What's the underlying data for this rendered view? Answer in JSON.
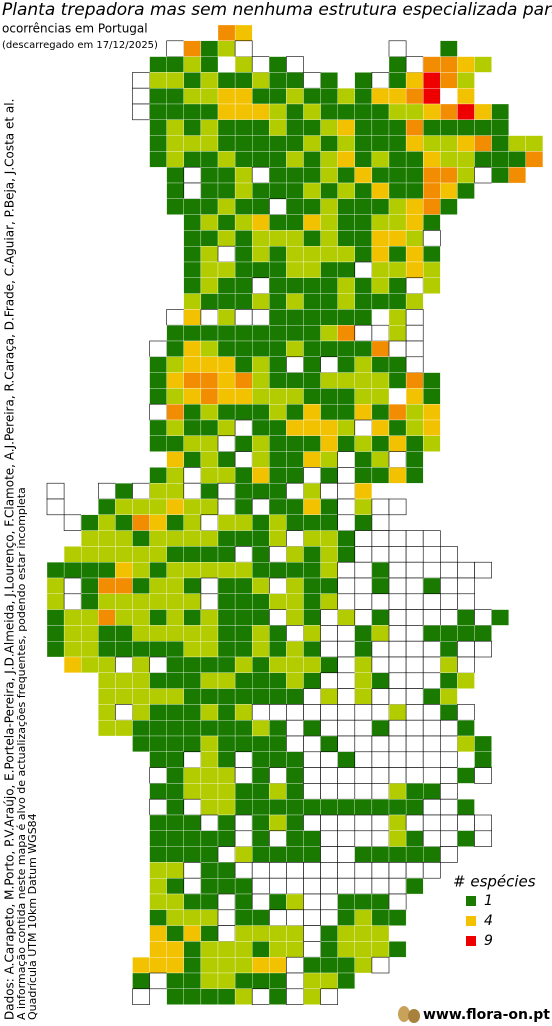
{
  "header": {
    "title": "Planta trepadora mas sem nenhuma estrutura especializada para trepa",
    "subtitle": "ocorrências em Portugal",
    "date": "(descarregado em 17/12/2025)"
  },
  "credits": [
    "Dados: A.Carapeto, M.Porto, P.V.Araújo, E.Portela-Pereira, J.D.Almeida, J.Lourenço, F.Clamote, A.J.Pereira, R.Caraça, D.Frade, C.Aguiar, P.Beja, J.Costa et al.",
    "A informação contida neste mapa é alvo de actualizações frequentes, podendo estar incompleta",
    "Quadrícula UTM 10km Datum WGS84"
  ],
  "legend": {
    "title": "# espécies",
    "items": [
      {
        "value": 1,
        "color": "#1a7a00"
      },
      {
        "value": 4,
        "color": "#f2c200"
      },
      {
        "value": 9,
        "color": "#ee0000"
      }
    ]
  },
  "map": {
    "intermediate_colors": {
      "2": "#b3cc00",
      "6": "#f28c00"
    },
    "rows": [
      "          64",
      "       w612w        w  1",
      "      1121 2w1w     1w6642",
      "     w221211211w1 1w14962",
      "     w11224411211214469 4",
      "     w111144421211112246941",
      "      121211121124111611111",
      "      12221111121211142246122",
      "      12112111212412114221116",
      "       1w112w111214111662w16",
      "       1w1121112121411641",
      "       111211w1121112461",
      "        121241142112241",
      "        11212221211442w",
      "        12w121222214141",
      "        1221112211w2242",
      "        1211w11112121w2",
      "        21112121121112",
      "       w4w2ww111111 2w",
      "       11111111126ww2w",
      "      w1421111211116ww",
      "      12444121w1w1211w",
      "      14664621112222161",
      "      12464422211122 41",
      "      w6121112141141624",
      "      12112w114442w4124",
      "      1122w121114121412",
      "       4121w21142w12w1",
      "      12w221411w1w1141",
      "w  w1w22w1w111w2ww4",
      "w  1222422w1w1141w2ww",
      " w1216412w2212111w1w",
      "  222122221112w221wwwww",
      " 2222221111w1w2121wwww w",
      "11114212222211112ww1wwwwww",
      "2w1661221w112w211ww1ww1ww",
      "2w1222222w1112212wwwwwwww",
      "1226221212111w21w2w1wwww1w1",
      "12211222221121w2ww12ww1111",
      "1221111122112121ww1wwww1ww",
      " 422w2w1111212221w2wwww2w",
      "   2221112211121ww21www12",
      "   222221111111w2w2www12",
      "   2w2111212wwwwwwww2ww1w",
      "   22111111121w1www1wwww1",
      "     111121111ww1wwwwwww21",
      "      11w21w111ww1wwwwww 1",
      "      w1222w1w1wwwwwww w1w",
      "      112221121wwwww211w",
      "      w1w2211111111111ww1",
      "      111w1w121wwwww2wwwww",
      "      11111w1w11wwww21ww1w",
      "      1111w21111ww11111w",
      "      22w11wwwwwwwwwwww",
      "      21w111wwwwwwwww1",
      "      2211w1w12ww111w",
      "      1222w11wwww1211",
      "      4141w2222w1222",
      "      441222122w12221",
      "     444122244w1112w",
      "     1w1122111w221",
      "     w 11112w1w2w"
    ]
  },
  "footer": {
    "site": "www.flora-on.pt"
  }
}
